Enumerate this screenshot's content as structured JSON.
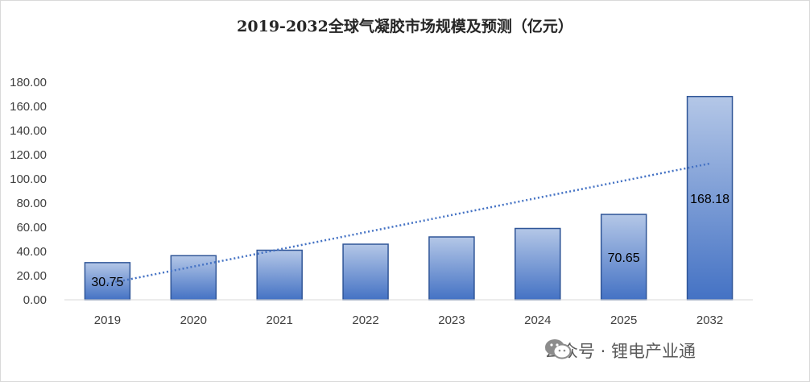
{
  "chart_data": {
    "type": "bar",
    "title": "2019-2032全球气凝胶市场规模及预测（亿元）",
    "categories": [
      "2019",
      "2020",
      "2021",
      "2022",
      "2023",
      "2024",
      "2025",
      "2032"
    ],
    "values": [
      30.75,
      36.5,
      41,
      46,
      52,
      59,
      70.65,
      168.18
    ],
    "data_labels": [
      "30.75",
      "",
      "",
      "",
      "",
      "",
      "70.65",
      "168.18"
    ],
    "y_ticks": [
      "0.00",
      "20.00",
      "40.00",
      "60.00",
      "80.00",
      "100.00",
      "120.00",
      "140.00",
      "160.00",
      "180.00"
    ],
    "ylim": [
      0,
      180
    ],
    "xlabel": "",
    "ylabel": "",
    "grid": false,
    "trendline": {
      "type": "linear",
      "style": "dotted",
      "color": "#4472c4"
    },
    "bar_gradient": {
      "top": "#b4c7e7",
      "bottom": "#4472c4",
      "border": "#2f5597"
    }
  },
  "watermark": {
    "icon": "wechat-icon",
    "text": "公众号 · 锂电产业通"
  }
}
